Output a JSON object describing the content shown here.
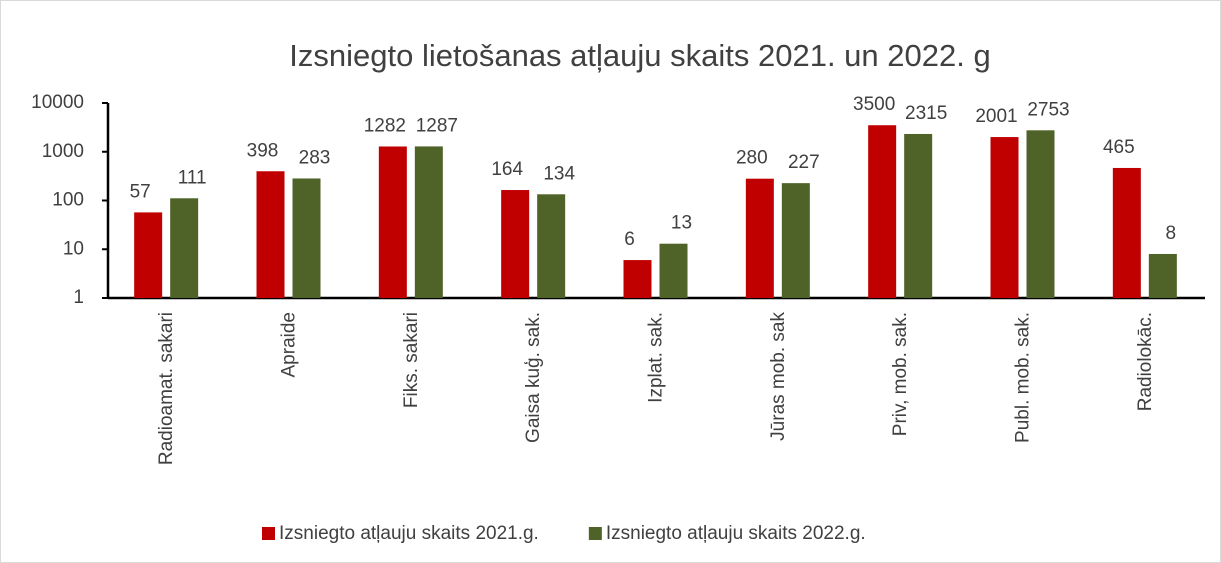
{
  "chart_data": {
    "type": "bar",
    "title": "Izsniegto lietošanas atļauju skaits 2021. un 2022. g",
    "categories": [
      "Radioamat. sakari",
      "Apraide",
      "Fiks. sakari",
      "Gaisa kuģ. sak.",
      "Izplat. sak.",
      "Jūras mob. sak",
      "Priv, mob. sak.",
      "Publ. mob. sak.",
      "Radiolokāc."
    ],
    "series": [
      {
        "name": "Izsniegto atļauju skaits 2021.g.",
        "color": "#c00000",
        "values": [
          57,
          398,
          1282,
          164,
          6,
          280,
          3500,
          2001,
          465
        ]
      },
      {
        "name": "Izsniegto atļauju skaits 2022.g.",
        "color": "#4f6228",
        "values": [
          111,
          283,
          1287,
          134,
          13,
          227,
          2315,
          2753,
          8
        ]
      }
    ],
    "ylim": [
      1,
      10000
    ],
    "yticks": [
      1,
      10,
      100,
      1000,
      10000
    ],
    "log_scale": true,
    "grid": false,
    "legend": "bottom"
  }
}
